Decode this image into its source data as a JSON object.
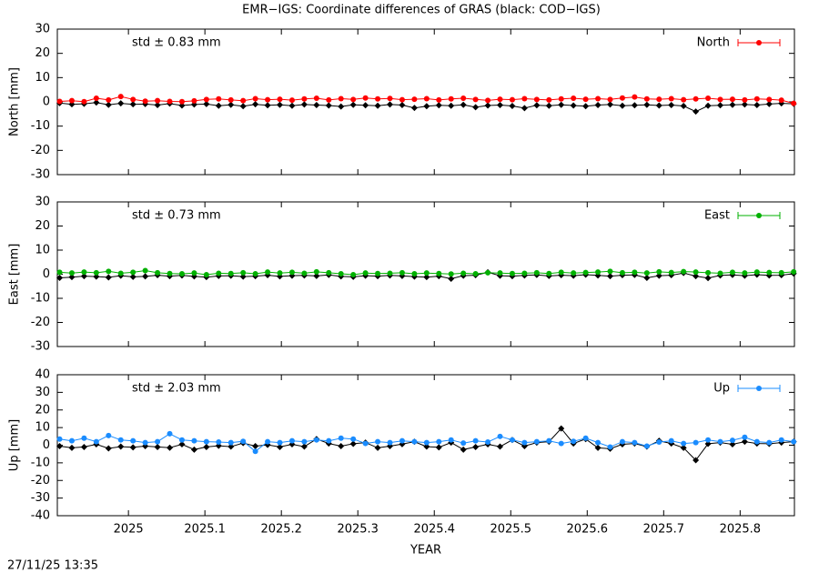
{
  "chart_data": [
    {
      "type": "line",
      "title": "EMR−IGS: Coordinate differences of GRAS (black: COD−IGS)",
      "ylabel": "North [mm]",
      "annotation": "std ± 0.83 mm",
      "x": [
        2024.91,
        2024.926,
        2024.942,
        2024.958,
        2024.974,
        2024.99,
        2025.006,
        2025.022,
        2025.038,
        2025.054,
        2025.07,
        2025.086,
        2025.102,
        2025.118,
        2025.134,
        2025.15,
        2025.166,
        2025.182,
        2025.198,
        2025.214,
        2025.23,
        2025.246,
        2025.262,
        2025.278,
        2025.294,
        2025.31,
        2025.326,
        2025.342,
        2025.358,
        2025.374,
        2025.39,
        2025.406,
        2025.422,
        2025.438,
        2025.454,
        2025.47,
        2025.486,
        2025.502,
        2025.518,
        2025.534,
        2025.55,
        2025.566,
        2025.582,
        2025.598,
        2025.614,
        2025.63,
        2025.646,
        2025.662,
        2025.678,
        2025.694,
        2025.71,
        2025.726,
        2025.742,
        2025.758,
        2025.774,
        2025.79,
        2025.806,
        2025.822,
        2025.838,
        2025.854,
        2025.87
      ],
      "series": [
        {
          "color": "#000000",
          "values": [
            -0.5,
            -1,
            -0.8,
            -0.3,
            -1.2,
            -0.6,
            -1,
            -0.9,
            -1.3,
            -0.7,
            -1.5,
            -1.1,
            -0.9,
            -1.6,
            -1.2,
            -1.8,
            -1,
            -1.4,
            -1.2,
            -1.6,
            -1.1,
            -1.3,
            -1.5,
            -1.9,
            -1.2,
            -1.4,
            -1.6,
            -1.1,
            -1.3,
            -2.5,
            -1.8,
            -1.4,
            -1.6,
            -1.2,
            -2.2,
            -1.5,
            -1.3,
            -1.7,
            -2.6,
            -1.4,
            -1.6,
            -1.2,
            -1.5,
            -1.8,
            -1.3,
            -1.1,
            -1.6,
            -1.4,
            -1.2,
            -1.5,
            -1.3,
            -1.7,
            -4,
            -1.6,
            -1.4,
            -1.2,
            -1.1,
            -1.3,
            -0.9,
            -0.6,
            -0.8
          ]
        },
        {
          "name": "North",
          "color": "#ff0000",
          "values": [
            0.2,
            0.5,
            0.1,
            1.5,
            0.8,
            2.2,
            1,
            0.3,
            0.5,
            0.2,
            0.1,
            0.4,
            1,
            1.2,
            0.8,
            0.5,
            1.3,
            0.9,
            1.1,
            0.7,
            1.2,
            1.5,
            0.8,
            1.3,
            1,
            1.6,
            1.2,
            1.4,
            0.9,
            1.1,
            1.3,
            0.8,
            1.2,
            1.5,
            1,
            0.6,
            1.1,
            0.9,
            1.3,
            1,
            0.8,
            1.2,
            1.5,
            1.1,
            1.3,
            1,
            1.6,
            2,
            1.2,
            1.1,
            1.3,
            0.9,
            1.2,
            1.5,
            1,
            1.1,
            0.8,
            1.2,
            1,
            0.7,
            -0.6
          ]
        }
      ],
      "xlim": [
        2024.907,
        2025.871
      ],
      "xticks": [
        2025,
        2025.1,
        2025.2,
        2025.3,
        2025.4,
        2025.5,
        2025.6,
        2025.7,
        2025.8
      ],
      "show_xtick_labels": false,
      "ylim": [
        -30,
        30
      ],
      "yticks": [
        -30,
        -20,
        -10,
        0,
        10,
        20,
        30
      ]
    },
    {
      "type": "line",
      "ylabel": "East [mm]",
      "annotation": "std ± 0.73 mm",
      "x": [
        2024.91,
        2024.926,
        2024.942,
        2024.958,
        2024.974,
        2024.99,
        2025.006,
        2025.022,
        2025.038,
        2025.054,
        2025.07,
        2025.086,
        2025.102,
        2025.118,
        2025.134,
        2025.15,
        2025.166,
        2025.182,
        2025.198,
        2025.214,
        2025.23,
        2025.246,
        2025.262,
        2025.278,
        2025.294,
        2025.31,
        2025.326,
        2025.342,
        2025.358,
        2025.374,
        2025.39,
        2025.406,
        2025.422,
        2025.438,
        2025.454,
        2025.47,
        2025.486,
        2025.502,
        2025.518,
        2025.534,
        2025.55,
        2025.566,
        2025.582,
        2025.598,
        2025.614,
        2025.63,
        2025.646,
        2025.662,
        2025.678,
        2025.694,
        2025.71,
        2025.726,
        2025.742,
        2025.758,
        2025.774,
        2025.79,
        2025.806,
        2025.822,
        2025.838,
        2025.854,
        2025.87
      ],
      "series": [
        {
          "color": "#000000",
          "values": [
            -1.5,
            -1.2,
            -0.8,
            -1,
            -1.3,
            -0.6,
            -1.1,
            -0.9,
            -0.4,
            -0.8,
            -0.5,
            -0.9,
            -1.2,
            -0.7,
            -0.6,
            -1,
            -0.8,
            -0.4,
            -0.9,
            -0.6,
            -0.5,
            -0.7,
            -0.3,
            -0.9,
            -1.1,
            -0.6,
            -0.8,
            -0.5,
            -0.7,
            -1,
            -1.2,
            -0.8,
            -1.9,
            -0.6,
            -0.4,
            0.8,
            -0.6,
            -0.8,
            -0.5,
            -0.3,
            -0.7,
            -0.4,
            -0.6,
            -0.2,
            -0.5,
            -0.8,
            -0.4,
            -0.3,
            -1.5,
            -0.6,
            -0.4,
            0.5,
            -0.8,
            -1.6,
            -0.5,
            -0.3,
            -0.6,
            -0.2,
            -0.5,
            -0.4,
            0.3
          ]
        },
        {
          "name": "East",
          "color": "#00b000",
          "values": [
            0.8,
            0.5,
            0.9,
            0.6,
            1.2,
            0.4,
            0.8,
            1.5,
            0.6,
            0.3,
            0.2,
            0.5,
            -0.2,
            0.4,
            0.3,
            0.6,
            0.2,
            0.9,
            0.5,
            0.8,
            0.4,
            1,
            0.6,
            0.2,
            -0.2,
            0.5,
            0.3,
            0.4,
            0.6,
            0.2,
            0.5,
            0.3,
            0.1,
            0.4,
            0.2,
            0.6,
            0.5,
            0.3,
            0.4,
            0.6,
            0.3,
            0.8,
            0.5,
            0.7,
            0.9,
            1.2,
            0.6,
            0.8,
            0.5,
            1,
            0.7,
            1.1,
            0.9,
            0.6,
            0.4,
            0.8,
            0.5,
            0.9,
            0.7,
            0.6,
            1
          ]
        }
      ],
      "xlim": [
        2024.907,
        2025.871
      ],
      "xticks": [
        2025,
        2025.1,
        2025.2,
        2025.3,
        2025.4,
        2025.5,
        2025.6,
        2025.7,
        2025.8
      ],
      "show_xtick_labels": false,
      "ylim": [
        -30,
        30
      ],
      "yticks": [
        -30,
        -20,
        -10,
        0,
        10,
        20,
        30
      ]
    },
    {
      "type": "line",
      "ylabel": "Up [mm]",
      "xlabel": "YEAR",
      "annotation": "std ± 2.03 mm",
      "x": [
        2024.91,
        2024.926,
        2024.942,
        2024.958,
        2024.974,
        2024.99,
        2025.006,
        2025.022,
        2025.038,
        2025.054,
        2025.07,
        2025.086,
        2025.102,
        2025.118,
        2025.134,
        2025.15,
        2025.166,
        2025.182,
        2025.198,
        2025.214,
        2025.23,
        2025.246,
        2025.262,
        2025.278,
        2025.294,
        2025.31,
        2025.326,
        2025.342,
        2025.358,
        2025.374,
        2025.39,
        2025.406,
        2025.422,
        2025.438,
        2025.454,
        2025.47,
        2025.486,
        2025.502,
        2025.518,
        2025.534,
        2025.55,
        2025.566,
        2025.582,
        2025.598,
        2025.614,
        2025.63,
        2025.646,
        2025.662,
        2025.678,
        2025.694,
        2025.71,
        2025.726,
        2025.742,
        2025.758,
        2025.774,
        2025.79,
        2025.806,
        2025.822,
        2025.838,
        2025.854,
        2025.87
      ],
      "series": [
        {
          "color": "#000000",
          "values": [
            -0.5,
            -1.5,
            -1,
            0.5,
            -1.8,
            -0.8,
            -1.2,
            -0.5,
            -1,
            -1.4,
            0.5,
            -2.5,
            -1,
            -0.3,
            -0.8,
            1.2,
            -0.5,
            0.2,
            -1,
            0.5,
            -0.8,
            3.5,
            1,
            -0.5,
            0.8,
            1.5,
            -1.5,
            -0.5,
            0.6,
            2,
            -0.8,
            -1.2,
            1.5,
            -2.5,
            -1,
            0.5,
            -0.8,
            3,
            -0.5,
            1.5,
            2,
            9.5,
            1,
            3.5,
            -1.5,
            -2,
            0.5,
            1,
            -0.8,
            2.5,
            1,
            -1.5,
            -8.5,
            0.8,
            1.5,
            0.5,
            2,
            1,
            0.8,
            1.5,
            2
          ]
        },
        {
          "name": "Up",
          "color": "#1a8cff",
          "values": [
            3.5,
            2.5,
            4,
            2,
            5.5,
            3,
            2.5,
            1.5,
            2,
            6.5,
            3,
            2.5,
            2,
            1.8,
            1.5,
            2.2,
            -3.5,
            2,
            1.5,
            2.5,
            2,
            3,
            2.5,
            4,
            3.5,
            1,
            2,
            1.5,
            2.5,
            2,
            1.5,
            2,
            3,
            1.2,
            2.5,
            1.8,
            5,
            3,
            1.5,
            2,
            2.5,
            1,
            2.2,
            4,
            1.5,
            -1,
            2,
            1.5,
            -0.5,
            1.8,
            2.5,
            1,
            1.5,
            3,
            2,
            2.8,
            4.5,
            2,
            1.5,
            3,
            2
          ]
        }
      ],
      "xlim": [
        2024.907,
        2025.871
      ],
      "xticks": [
        2025,
        2025.1,
        2025.2,
        2025.3,
        2025.4,
        2025.5,
        2025.6,
        2025.7,
        2025.8
      ],
      "show_xtick_labels": true,
      "ylim": [
        -40,
        40
      ],
      "yticks": [
        -40,
        -30,
        -20,
        -10,
        0,
        10,
        20,
        30,
        40
      ]
    }
  ],
  "timestamp": "27/11/25 13:35"
}
